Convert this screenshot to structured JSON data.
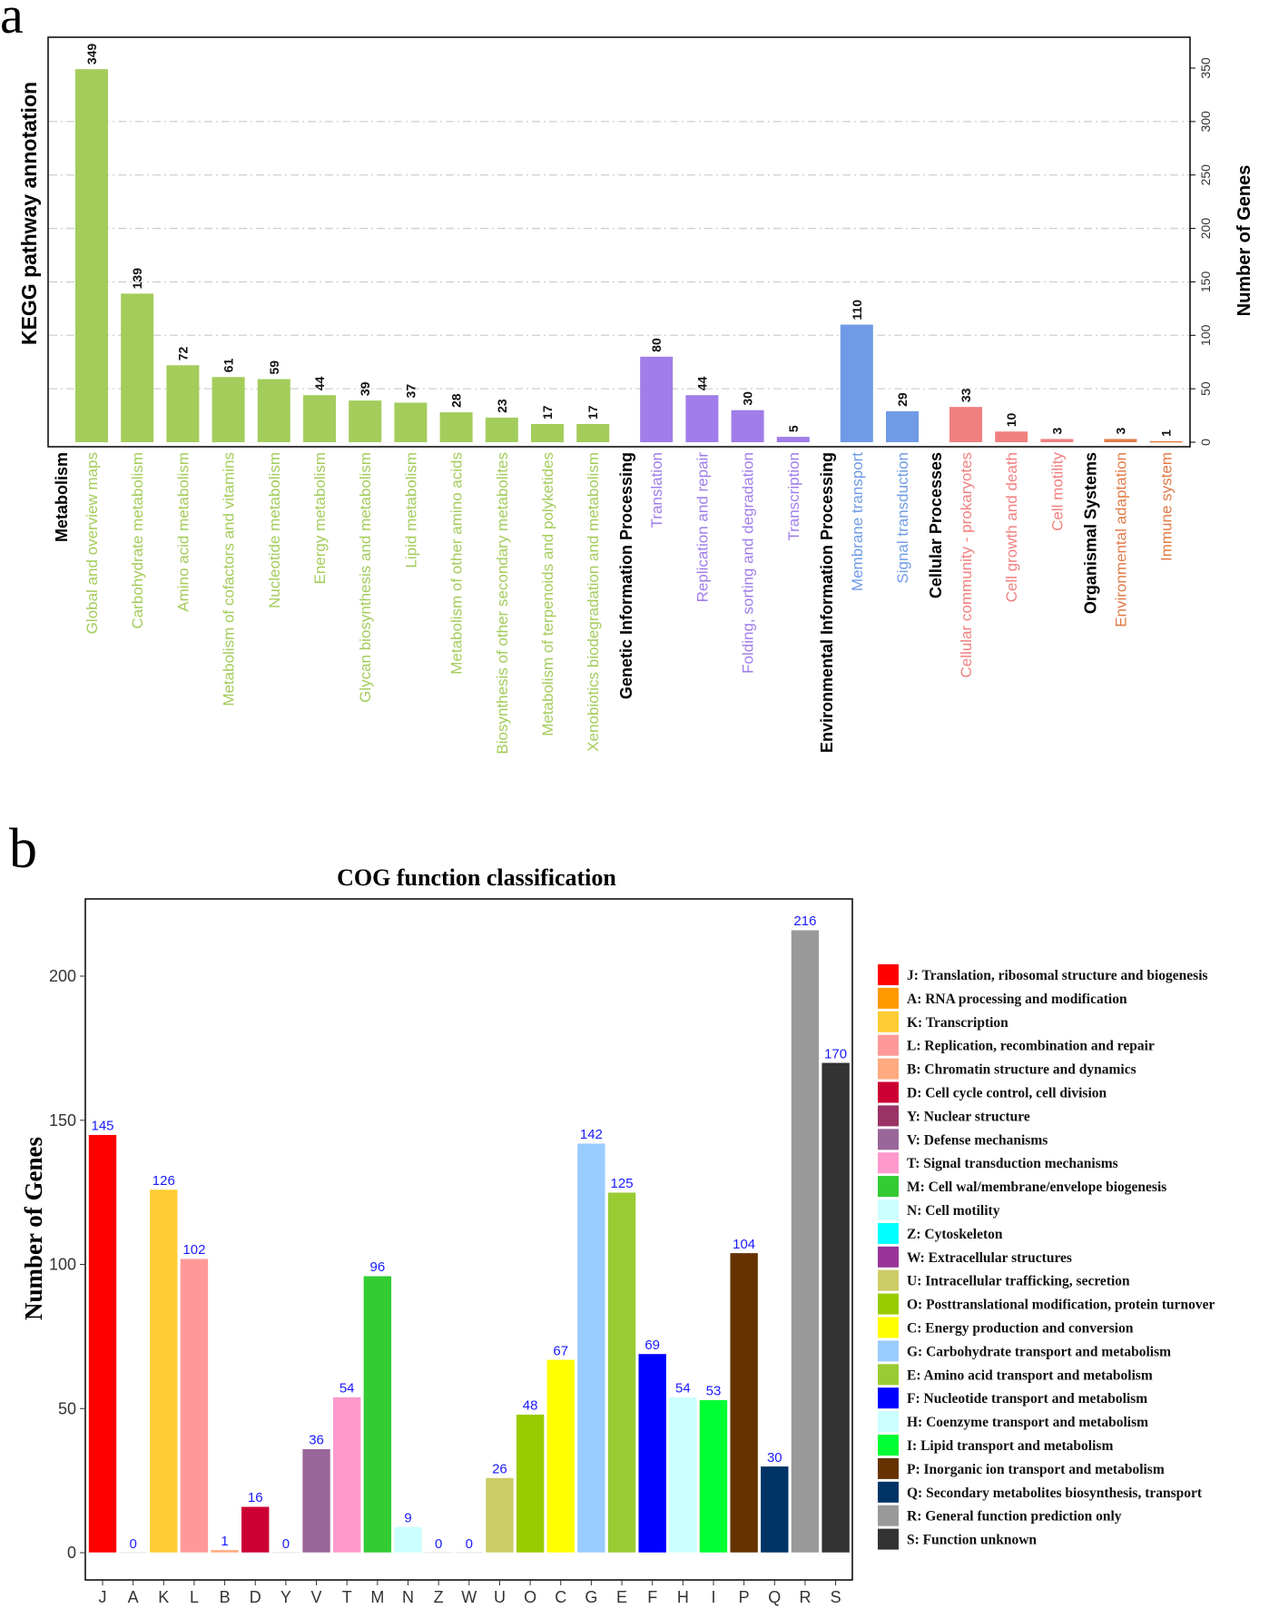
{
  "chart_data": [
    {
      "type": "bar",
      "panel_label": "a",
      "title": "",
      "xlabel": "",
      "ylabel": "KEGG pathway annotation",
      "y2label": "Number of Genes",
      "ylim": [
        0,
        370
      ],
      "yticks": [
        0,
        50,
        100,
        150,
        200,
        250,
        300,
        350
      ],
      "grid": true,
      "groups": [
        {
          "heading": "Metabolism",
          "color": "#a3cc5b",
          "items": [
            {
              "label": "Global and overview maps",
              "value": 349
            },
            {
              "label": "Carbohydrate metabolism",
              "value": 139
            },
            {
              "label": "Amino acid metabolism",
              "value": 72
            },
            {
              "label": "Metabolism of cofactors and vitamins",
              "value": 61
            },
            {
              "label": "Nucleotide metabolism",
              "value": 59
            },
            {
              "label": "Energy metabolism",
              "value": 44
            },
            {
              "label": "Glycan biosynthesis and metabolism",
              "value": 39
            },
            {
              "label": "Lipid metabolism",
              "value": 37
            },
            {
              "label": "Metabolism of other amino acids",
              "value": 28
            },
            {
              "label": "Biosynthesis of other secondary metabolites",
              "value": 23
            },
            {
              "label": "Metabolism of terpenoids and polyketides",
              "value": 17
            },
            {
              "label": "Xenobiotics biodegradation and metabolism",
              "value": 17
            }
          ]
        },
        {
          "heading": "Genetic Information Processing",
          "color": "#a07de9",
          "items": [
            {
              "label": "Translation",
              "value": 80
            },
            {
              "label": "Replication and repair",
              "value": 44
            },
            {
              "label": "Folding, sorting and degradation",
              "value": 30
            },
            {
              "label": "Transcription",
              "value": 5
            }
          ]
        },
        {
          "heading": "Environmental Information Processing",
          "color": "#6f9be6",
          "items": [
            {
              "label": "Membrane transport",
              "value": 110
            },
            {
              "label": "Signal transduction",
              "value": 29
            }
          ]
        },
        {
          "heading": "Cellular Processes",
          "color": "#f08080",
          "items": [
            {
              "label": "Cellular community - prokaryotes",
              "value": 33
            },
            {
              "label": "Cell growth and death",
              "value": 10
            },
            {
              "label": "Cell motility",
              "value": 3
            }
          ]
        },
        {
          "heading": "Organismal Systems",
          "color": "#e07b48",
          "items": [
            {
              "label": "Environmental adaptation",
              "value": 3
            },
            {
              "label": "Immune system",
              "value": 1
            }
          ]
        }
      ]
    },
    {
      "type": "bar",
      "panel_label": "b",
      "title": "COG function classification",
      "xlabel": "",
      "ylabel": "Number of Genes",
      "ylim": [
        -15,
        225
      ],
      "yticks": [
        0,
        50,
        100,
        150,
        200
      ],
      "legend_position": "right",
      "categories": [
        "J",
        "A",
        "K",
        "L",
        "B",
        "D",
        "Y",
        "V",
        "T",
        "M",
        "N",
        "Z",
        "W",
        "U",
        "O",
        "C",
        "G",
        "E",
        "F",
        "H",
        "I",
        "P",
        "Q",
        "R",
        "S"
      ],
      "values": [
        145,
        0,
        126,
        102,
        1,
        16,
        0,
        36,
        54,
        96,
        9,
        0,
        0,
        26,
        48,
        67,
        142,
        125,
        69,
        54,
        53,
        104,
        30,
        216,
        170
      ],
      "colors": [
        "#ff0000",
        "#ff9900",
        "#ffcc33",
        "#ff9999",
        "#ffaa80",
        "#cc0033",
        "#993366",
        "#996699",
        "#ff99cc",
        "#33cc33",
        "#ccffff",
        "#00ffff",
        "#993399",
        "#cccc66",
        "#99cc00",
        "#ffff00",
        "#99ccff",
        "#99cc33",
        "#0000ff",
        "#ccffff",
        "#00ff33",
        "#663300",
        "#003366",
        "#999999",
        "#333333"
      ],
      "legend": [
        "J: Translation, ribosomal structure and biogenesis",
        "A: RNA processing and modification",
        "K: Transcription",
        "L: Replication, recombination and repair",
        "B: Chromatin structure and dynamics",
        "D: Cell cycle control, cell division",
        "Y: Nuclear structure",
        "V: Defense mechanisms",
        "T: Signal transduction mechanisms",
        "M: Cell wal/membrane/envelope biogenesis",
        "N: Cell motility",
        "Z: Cytoskeleton",
        "W: Extracellular structures",
        "U: Intracellular trafficking, secretion",
        "O: Posttranslational modification, protein turnover",
        "C: Energy production and conversion",
        "G: Carbohydrate transport and metabolism",
        "E: Amino acid transport and metabolism",
        "F: Nucleotide transport and metabolism",
        "H: Coenzyme transport and metabolism",
        "I: Lipid transport and metabolism",
        "P: Inorganic ion transport and metabolism",
        "Q: Secondary metabolites biosynthesis, transport",
        "R: General function prediction only",
        "S: Function unknown"
      ]
    }
  ]
}
